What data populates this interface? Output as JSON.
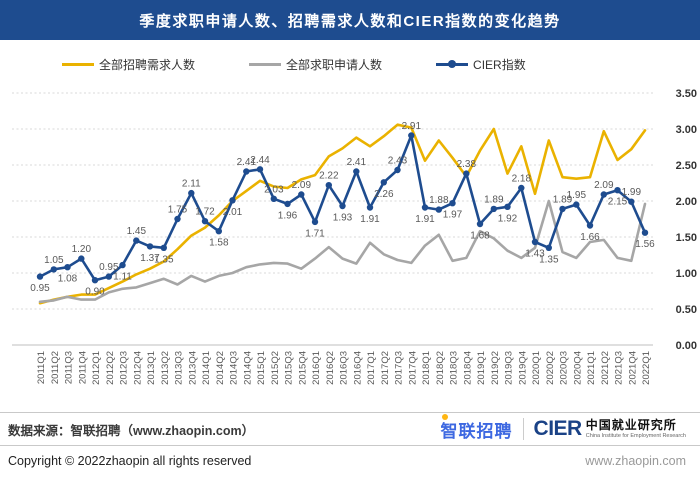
{
  "header": {
    "title": "季度求职申请人数、招聘需求人数和CIER指数的变化趋势"
  },
  "legend": [
    {
      "label": "全部招聘需求人数",
      "color": "#EAB200",
      "marker": false
    },
    {
      "label": "全部求职申请人数",
      "color": "#A6A6A6",
      "marker": false
    },
    {
      "label": "CIER指数",
      "color": "#1E4C8F",
      "marker": true
    }
  ],
  "chart_data": {
    "type": "line",
    "title": "季度求职申请人数、招聘需求人数和CIER指数的变化趋势",
    "categories": [
      "2011Q1",
      "2011Q2",
      "2011Q3",
      "2011Q4",
      "2012Q1",
      "2012Q2",
      "2012Q3",
      "2012Q4",
      "2013Q1",
      "2013Q2",
      "2013Q3",
      "2013Q4",
      "2014Q1",
      "2014Q2",
      "2014Q3",
      "2014Q4",
      "2015Q1",
      "2015Q2",
      "2015Q3",
      "2015Q4",
      "2016Q1",
      "2016Q2",
      "2016Q3",
      "2016Q4",
      "2017Q1",
      "2017Q2",
      "2017Q3",
      "2017Q4",
      "2018Q1",
      "2018Q2",
      "2018Q3",
      "2018Q4",
      "2019Q1",
      "2019Q2",
      "2019Q3",
      "2019Q4",
      "2020Q1",
      "2020Q2",
      "2020Q3",
      "2020Q4",
      "2021Q1",
      "2021Q2",
      "2021Q3",
      "2021Q4",
      "2022Q1"
    ],
    "series": [
      {
        "name": "全部招聘需求人数",
        "color": "#EAB200",
        "markers": false,
        "labels": false,
        "values": [
          0.58,
          0.63,
          0.67,
          0.7,
          0.7,
          0.79,
          0.88,
          0.98,
          1.06,
          1.16,
          1.33,
          1.52,
          1.63,
          1.8,
          2.0,
          2.14,
          2.28,
          2.2,
          2.18,
          2.3,
          2.36,
          2.62,
          2.73,
          2.88,
          2.76,
          2.9,
          3.06,
          3.02,
          2.56,
          2.84,
          2.6,
          2.34,
          2.7,
          3.0,
          2.38,
          2.76,
          2.1,
          2.84,
          2.33,
          2.31,
          2.33,
          2.97,
          2.57,
          2.72,
          2.98
        ]
      },
      {
        "name": "全部求职申请人数",
        "color": "#A6A6A6",
        "markers": false,
        "labels": false,
        "values": [
          0.6,
          0.62,
          0.67,
          0.63,
          0.63,
          0.73,
          0.78,
          0.8,
          0.86,
          0.92,
          0.84,
          0.96,
          0.88,
          0.96,
          1.0,
          1.08,
          1.12,
          1.14,
          1.13,
          1.06,
          1.2,
          1.36,
          1.2,
          1.13,
          1.42,
          1.26,
          1.18,
          1.14,
          1.38,
          1.53,
          1.17,
          1.21,
          1.58,
          1.48,
          1.31,
          1.21,
          1.35,
          2.0,
          1.29,
          1.21,
          1.43,
          1.46,
          1.21,
          1.17,
          1.96
        ]
      },
      {
        "name": "CIER指数",
        "color": "#1E4C8F",
        "markers": true,
        "labels": true,
        "values": [
          0.95,
          1.05,
          1.08,
          1.2,
          0.9,
          0.95,
          1.11,
          1.45,
          1.37,
          1.35,
          1.75,
          2.11,
          1.72,
          1.58,
          2.01,
          2.41,
          2.44,
          2.03,
          1.96,
          2.09,
          1.71,
          2.22,
          1.93,
          2.41,
          1.91,
          2.26,
          2.43,
          2.91,
          1.91,
          1.88,
          1.97,
          2.38,
          1.68,
          1.89,
          1.92,
          2.18,
          1.43,
          1.35,
          1.89,
          1.95,
          1.66,
          2.09,
          2.15,
          1.99,
          1.56
        ],
        "label_pos": [
          "b",
          "a",
          "b",
          "a",
          "b",
          "a",
          "b",
          "a",
          "b",
          "b",
          "a",
          "a",
          "a",
          "b",
          "b",
          "a",
          "a",
          "a",
          "b",
          "a",
          "b",
          "a",
          "b",
          "a",
          "b",
          "b",
          "a",
          "a",
          "b",
          "a",
          "b",
          "a",
          "b",
          "a",
          "b",
          "a",
          "b",
          "b",
          "a",
          "a",
          "b",
          "a",
          "b",
          "a",
          "b"
        ]
      }
    ],
    "ylim": [
      0,
      3.5
    ],
    "ytick_step": 0.5,
    "y_axis_side": "right",
    "grid": "dashed-horizontal",
    "legend_position": "top-left"
  },
  "footer": {
    "source": "数据来源：智联招聘（www.zhaopin.com）",
    "zhaopin_logo": "智联招聘",
    "cier_logo": "CIER",
    "cier_cn": "中国就业研究所",
    "cier_en": "China Institute for Employment Research",
    "copyright": "Copyright © 2022zhaopin all rights reserved",
    "url": "www.zhaopin.com"
  }
}
